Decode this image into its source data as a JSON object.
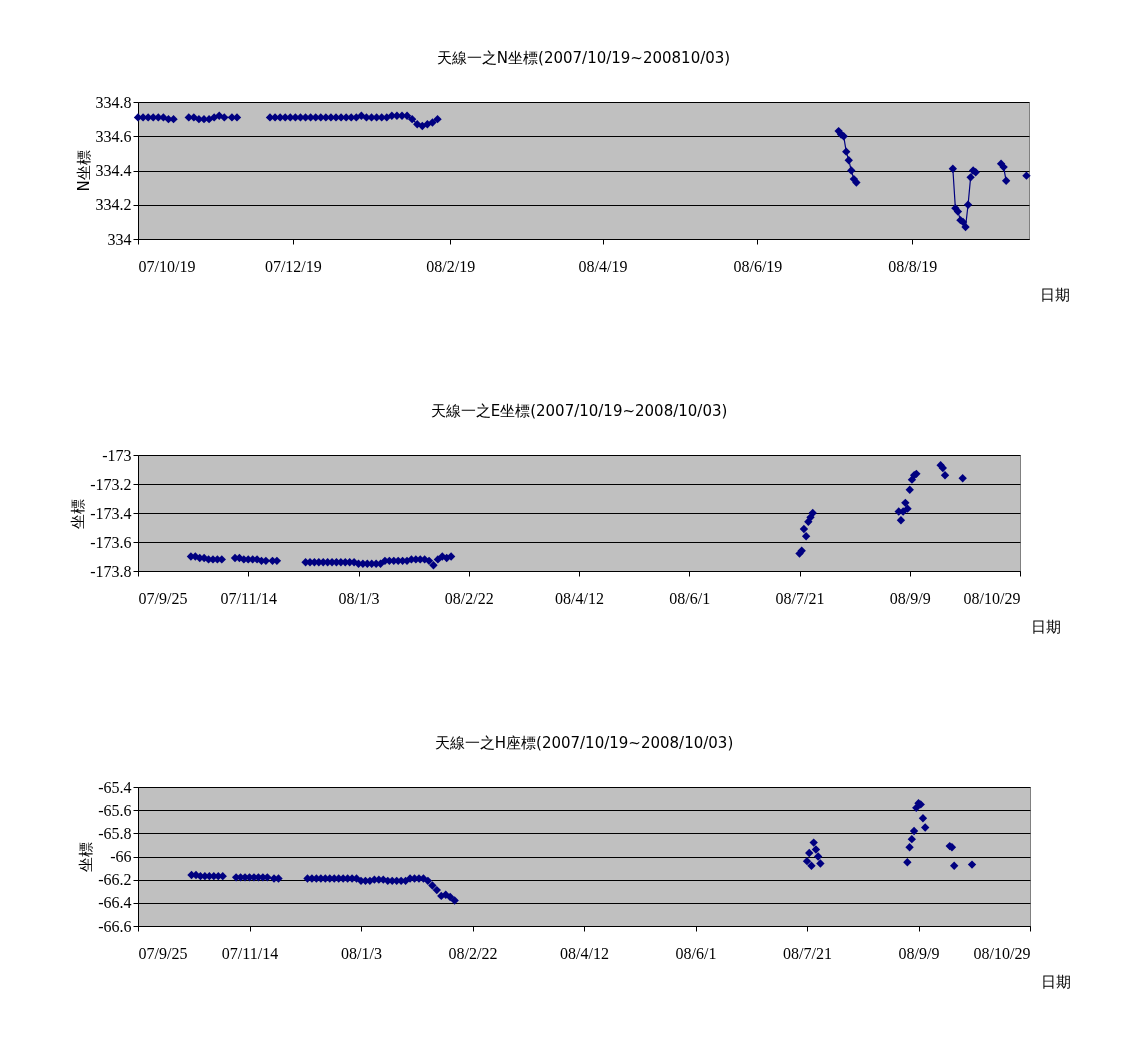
{
  "chart_data": [
    {
      "type": "line",
      "title": "天線一之N坐標(2007/10/19~200810/03)",
      "xlabel": "日期",
      "ylabel": "N坐標",
      "color": "#000080",
      "marker": "diamond",
      "grid": "y",
      "x": [
        "2007-10-19",
        "2007-10-21",
        "2007-10-23",
        "2007-10-25",
        "2007-10-27",
        "2007-10-29",
        "2007-10-31",
        "2007-11-02",
        "2007-11-05",
        "2007-11-08",
        "2007-11-10",
        "2007-11-12",
        "2007-11-14",
        "2007-11-16",
        "2007-11-18",
        "2007-11-20",
        "2007-11-22",
        "2007-11-25",
        "2007-11-27",
        "2007-12-03",
        "2007-12-10",
        "2007-12-12",
        "2007-12-14",
        "2007-12-16",
        "2007-12-18",
        "2007-12-20",
        "2007-12-22",
        "2007-12-24",
        "2007-12-26",
        "2007-12-28",
        "2007-12-30",
        "2008-01-01",
        "2008-01-03",
        "2008-01-05",
        "2008-01-07",
        "2008-01-09",
        "2008-01-11",
        "2008-01-13",
        "2008-01-15",
        "2008-01-17",
        "2008-01-19",
        "2008-01-21",
        "2008-01-23",
        "2008-01-25",
        "2008-01-27",
        "2008-01-29",
        "2008-01-31",
        "2008-02-02",
        "2008-02-04",
        "2008-02-06",
        "2008-02-08",
        "2008-02-10",
        "2008-02-12",
        "2008-02-14",
        "2008-05-01",
        "2008-07-21",
        "2008-07-22",
        "2008-07-23",
        "2008-07-24",
        "2008-07-25",
        "2008-07-26",
        "2008-07-27",
        "2008-07-28",
        "2008-08-15",
        "2008-09-04",
        "2008-09-05",
        "2008-09-06",
        "2008-09-07",
        "2008-09-08",
        "2008-09-09",
        "2008-09-10",
        "2008-09-11",
        "2008-09-12",
        "2008-09-13",
        "2008-09-18",
        "2008-09-23",
        "2008-09-24",
        "2008-09-25",
        "2008-09-29",
        "2008-10-03"
      ],
      "values": [
        334.71,
        334.71,
        334.71,
        334.71,
        334.71,
        334.71,
        334.7,
        334.7,
        null,
        334.71,
        334.71,
        334.7,
        334.7,
        334.7,
        334.71,
        334.72,
        334.71,
        334.71,
        334.71,
        null,
        334.71,
        334.71,
        334.71,
        334.71,
        334.71,
        334.71,
        334.71,
        334.71,
        334.71,
        334.71,
        334.71,
        334.71,
        334.71,
        334.71,
        334.71,
        334.71,
        334.71,
        334.71,
        334.72,
        334.71,
        334.71,
        334.71,
        334.71,
        334.71,
        334.72,
        334.72,
        334.72,
        334.72,
        334.7,
        334.67,
        334.66,
        334.67,
        334.68,
        334.7,
        null,
        334.63,
        334.61,
        334.6,
        334.51,
        334.46,
        334.4,
        334.35,
        334.33,
        null,
        334.41,
        334.18,
        334.16,
        334.11,
        334.1,
        334.07,
        334.2,
        334.36,
        334.4,
        334.39,
        null,
        334.44,
        334.42,
        334.34,
        null,
        334.37
      ],
      "xlim": [
        "2007-10-19",
        "2008-10-04"
      ],
      "xticks": [
        {
          "value": "2007-10-19",
          "label": "07/10/19"
        },
        {
          "value": "2007-12-19",
          "label": "07/12/19"
        },
        {
          "value": "2008-02-19",
          "label": "08/2/19"
        },
        {
          "value": "2008-04-19",
          "label": "08/4/19"
        },
        {
          "value": "2008-06-19",
          "label": "08/6/19"
        },
        {
          "value": "2008-08-19",
          "label": "08/8/19"
        }
      ],
      "ylim": [
        334,
        334.8
      ],
      "yticks": [
        334,
        334.2,
        334.4,
        334.6,
        334.8
      ]
    },
    {
      "type": "scatter",
      "title": "天線一之E坐標(2007/10/19~2008/10/03)",
      "xlabel": "日期",
      "ylabel": "坐標",
      "color": "#000080",
      "marker": "diamond",
      "grid": "y",
      "x": [
        "2007-10-19",
        "2007-10-21",
        "2007-10-23",
        "2007-10-25",
        "2007-10-27",
        "2007-10-29",
        "2007-10-31",
        "2007-11-02",
        "2007-11-08",
        "2007-11-10",
        "2007-11-12",
        "2007-11-14",
        "2007-11-16",
        "2007-11-18",
        "2007-11-20",
        "2007-11-22",
        "2007-11-25",
        "2007-11-27",
        "2007-12-10",
        "2007-12-12",
        "2007-12-14",
        "2007-12-16",
        "2007-12-18",
        "2007-12-20",
        "2007-12-22",
        "2007-12-24",
        "2007-12-26",
        "2007-12-28",
        "2007-12-30",
        "2008-01-01",
        "2008-01-03",
        "2008-01-05",
        "2008-01-07",
        "2008-01-09",
        "2008-01-11",
        "2008-01-13",
        "2008-01-15",
        "2008-01-17",
        "2008-01-19",
        "2008-01-21",
        "2008-01-23",
        "2008-01-25",
        "2008-01-27",
        "2008-01-29",
        "2008-01-31",
        "2008-02-02",
        "2008-02-04",
        "2008-02-06",
        "2008-02-08",
        "2008-02-10",
        "2008-02-12",
        "2008-02-14",
        "2008-07-21",
        "2008-07-22",
        "2008-07-23",
        "2008-07-24",
        "2008-07-25",
        "2008-07-26",
        "2008-07-27",
        "2008-09-04",
        "2008-09-05",
        "2008-09-06",
        "2008-09-07",
        "2008-09-08",
        "2008-09-09",
        "2008-09-10",
        "2008-09-11",
        "2008-09-12",
        "2008-09-23",
        "2008-09-24",
        "2008-09-25",
        "2008-10-03"
      ],
      "values": [
        -173.7,
        -173.7,
        -173.71,
        -173.71,
        -173.72,
        -173.72,
        -173.72,
        -173.72,
        -173.71,
        -173.71,
        -173.72,
        -173.72,
        -173.72,
        -173.72,
        -173.73,
        -173.73,
        -173.73,
        -173.73,
        -173.74,
        -173.74,
        -173.74,
        -173.74,
        -173.74,
        -173.74,
        -173.74,
        -173.74,
        -173.74,
        -173.74,
        -173.74,
        -173.74,
        -173.75,
        -173.75,
        -173.75,
        -173.75,
        -173.75,
        -173.75,
        -173.73,
        -173.73,
        -173.73,
        -173.73,
        -173.73,
        -173.73,
        -173.72,
        -173.72,
        -173.72,
        -173.72,
        -173.73,
        -173.76,
        -173.72,
        -173.7,
        -173.71,
        -173.7,
        -173.68,
        -173.66,
        -173.51,
        -173.56,
        -173.46,
        -173.43,
        -173.4,
        -173.39,
        -173.45,
        -173.39,
        -173.33,
        -173.37,
        -173.24,
        -173.17,
        -173.14,
        -173.13,
        -173.07,
        -173.09,
        -173.14,
        -173.16
      ],
      "xlim": [
        "2007-09-25",
        "2008-10-29"
      ],
      "xticks": [
        {
          "value": "2007-09-25",
          "label": "07/9/25"
        },
        {
          "value": "2007-11-14",
          "label": "07/11/14"
        },
        {
          "value": "2008-01-03",
          "label": "08/1/3"
        },
        {
          "value": "2008-02-22",
          "label": "08/2/22"
        },
        {
          "value": "2008-04-12",
          "label": "08/4/12"
        },
        {
          "value": "2008-06-01",
          "label": "08/6/1"
        },
        {
          "value": "2008-07-21",
          "label": "08/7/21"
        },
        {
          "value": "2008-09-09",
          "label": "08/9/9"
        },
        {
          "value": "2008-10-29",
          "label": "08/10/29"
        }
      ],
      "ylim": [
        -173.8,
        -173
      ],
      "yticks": [
        -173.8,
        -173.6,
        -173.4,
        -173.2,
        -173
      ]
    },
    {
      "type": "scatter",
      "title": "天線一之H座標(2007/10/19~2008/10/03)",
      "xlabel": "日期",
      "ylabel": "坐標",
      "color": "#000080",
      "marker": "diamond",
      "grid": "y",
      "x": [
        "2007-10-19",
        "2007-10-21",
        "2007-10-23",
        "2007-10-25",
        "2007-10-27",
        "2007-10-29",
        "2007-10-31",
        "2007-11-02",
        "2007-11-08",
        "2007-11-10",
        "2007-11-12",
        "2007-11-14",
        "2007-11-16",
        "2007-11-18",
        "2007-11-20",
        "2007-11-22",
        "2007-11-25",
        "2007-11-27",
        "2007-12-10",
        "2007-12-12",
        "2007-12-14",
        "2007-12-16",
        "2007-12-18",
        "2007-12-20",
        "2007-12-22",
        "2007-12-24",
        "2007-12-26",
        "2007-12-28",
        "2007-12-30",
        "2008-01-01",
        "2008-01-03",
        "2008-01-05",
        "2008-01-07",
        "2008-01-09",
        "2008-01-11",
        "2008-01-13",
        "2008-01-15",
        "2008-01-17",
        "2008-01-19",
        "2008-01-21",
        "2008-01-23",
        "2008-01-25",
        "2008-01-27",
        "2008-01-29",
        "2008-01-31",
        "2008-02-02",
        "2008-02-04",
        "2008-02-06",
        "2008-02-08",
        "2008-02-10",
        "2008-02-12",
        "2008-02-14",
        "2008-07-21",
        "2008-07-22",
        "2008-07-23",
        "2008-07-24",
        "2008-07-25",
        "2008-07-26",
        "2008-07-27",
        "2008-09-04",
        "2008-09-05",
        "2008-09-06",
        "2008-09-07",
        "2008-09-08",
        "2008-09-09",
        "2008-09-10",
        "2008-09-11",
        "2008-09-12",
        "2008-09-23",
        "2008-09-24",
        "2008-09-25",
        "2008-10-03"
      ],
      "values": [
        -66.16,
        -66.16,
        -66.17,
        -66.17,
        -66.17,
        -66.17,
        -66.17,
        -66.17,
        -66.18,
        -66.18,
        -66.18,
        -66.18,
        -66.18,
        -66.18,
        -66.18,
        -66.18,
        -66.19,
        -66.19,
        -66.19,
        -66.19,
        -66.19,
        -66.19,
        -66.19,
        -66.19,
        -66.19,
        -66.19,
        -66.19,
        -66.19,
        -66.19,
        -66.19,
        -66.21,
        -66.21,
        -66.21,
        -66.2,
        -66.2,
        -66.2,
        -66.21,
        -66.21,
        -66.21,
        -66.21,
        -66.21,
        -66.19,
        -66.19,
        -66.19,
        -66.19,
        -66.21,
        -66.25,
        -66.29,
        -66.34,
        -66.33,
        -66.35,
        -66.38,
        -66.04,
        -65.97,
        -66.08,
        -65.88,
        -65.94,
        -66.0,
        -66.06,
        -66.05,
        -65.92,
        -65.85,
        -65.78,
        -65.58,
        -65.54,
        -65.55,
        -65.67,
        -65.75,
        -65.91,
        -65.92,
        -66.08,
        -66.07
      ],
      "xlim": [
        "2007-09-25",
        "2008-10-29"
      ],
      "xticks": [
        {
          "value": "2007-09-25",
          "label": "07/9/25"
        },
        {
          "value": "2007-11-14",
          "label": "07/11/14"
        },
        {
          "value": "2008-01-03",
          "label": "08/1/3"
        },
        {
          "value": "2008-02-22",
          "label": "08/2/22"
        },
        {
          "value": "2008-04-12",
          "label": "08/4/12"
        },
        {
          "value": "2008-06-01",
          "label": "08/6/1"
        },
        {
          "value": "2008-07-21",
          "label": "08/7/21"
        },
        {
          "value": "2008-09-09",
          "label": "08/9/9"
        },
        {
          "value": "2008-10-29",
          "label": "08/10/29"
        }
      ],
      "ylim": [
        -66.6,
        -65.4
      ],
      "yticks": [
        -66.6,
        -66.4,
        -66.2,
        -66,
        -65.8,
        -65.6,
        -65.4
      ]
    }
  ]
}
